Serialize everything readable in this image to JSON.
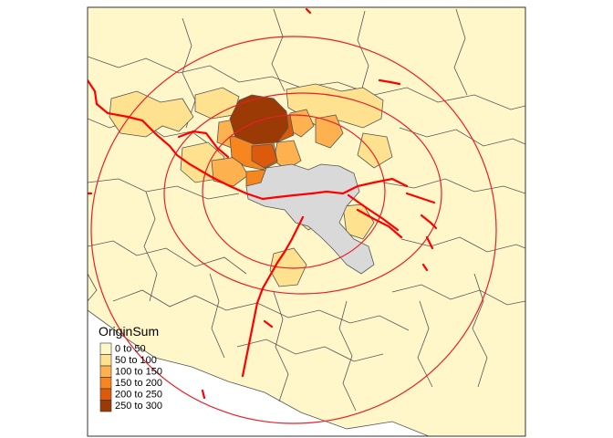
{
  "legend": {
    "title": "OriginSum",
    "classes": [
      {
        "label": "0 to 50",
        "color": "#fff7c9"
      },
      {
        "label": "50 to 100",
        "color": "#fee28f"
      },
      {
        "label": "100 to 150",
        "color": "#fdb24f"
      },
      {
        "label": "150 to 200",
        "color": "#f7861e"
      },
      {
        "label": "200 to 250",
        "color": "#db5a0b"
      },
      {
        "label": "250 to 300",
        "color": "#9c3a05"
      }
    ]
  },
  "colors": {
    "no_data": "#d9d9d9",
    "boundary": "#555555",
    "routes": "#ff0000",
    "buffers": "#e8202a"
  }
}
